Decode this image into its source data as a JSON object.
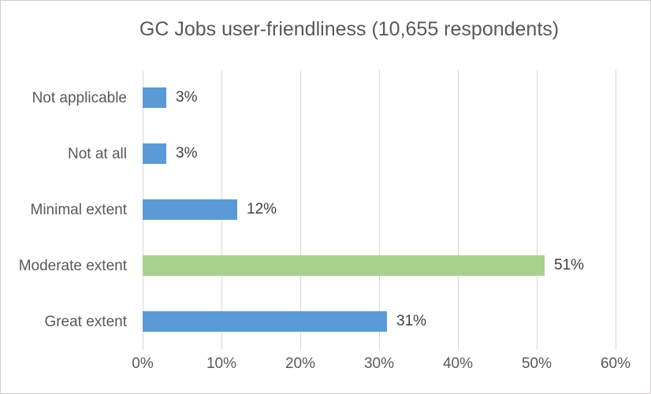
{
  "chart_data": {
    "type": "bar",
    "orientation": "horizontal",
    "title": "GC Jobs user-friendliness (10,655 respondents)",
    "categories": [
      "Not applicable",
      "Not at all",
      "Minimal extent",
      "Moderate extent",
      "Great extent"
    ],
    "values": [
      3,
      3,
      12,
      51,
      31
    ],
    "value_labels": [
      "3%",
      "3%",
      "12%",
      "51%",
      "31%"
    ],
    "bar_colors": [
      "#5B9BD5",
      "#5B9BD5",
      "#5B9BD5",
      "#A9D18E",
      "#5B9BD5"
    ],
    "x_ticks": [
      0,
      10,
      20,
      30,
      40,
      50,
      60
    ],
    "x_tick_labels": [
      "0%",
      "10%",
      "20%",
      "30%",
      "40%",
      "50%",
      "60%"
    ],
    "xlim": [
      0,
      60
    ],
    "grid": true,
    "legend": "none",
    "colors": {
      "default_bar": "#5B9BD5",
      "highlight_bar": "#A9D18E",
      "gridline": "#D9D9D9",
      "title_text": "#595959",
      "axis_text": "#595959",
      "value_text": "#404040",
      "frame_border": "#D0CECE",
      "background": "#FFFFFF"
    }
  }
}
